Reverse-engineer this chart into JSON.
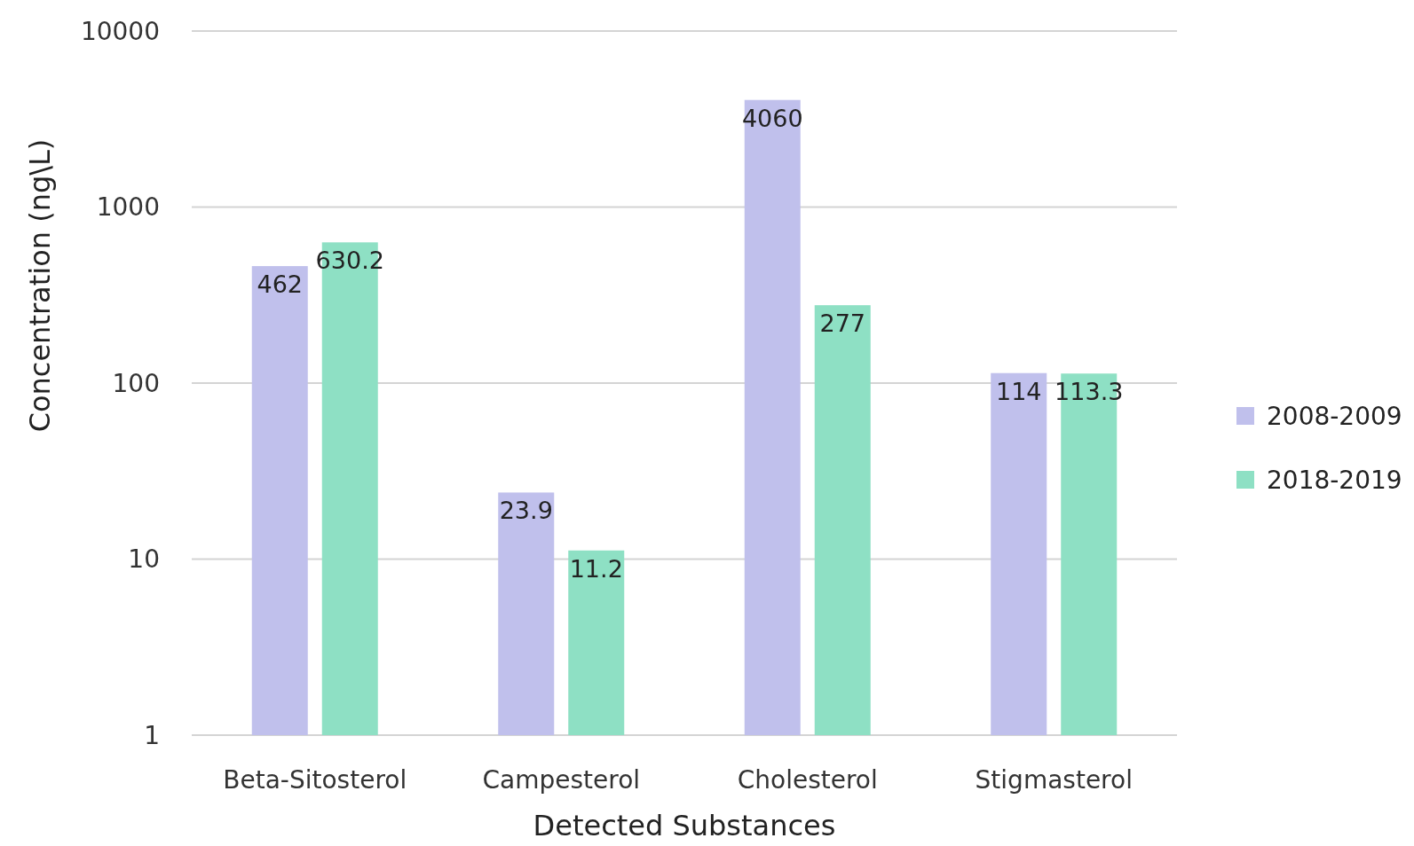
{
  "chart_data": {
    "type": "bar",
    "xlabel": "Detected Substances",
    "ylabel": "Concentration (ng\\L)",
    "categories": [
      "Beta-Sitosterol",
      "Campesterol",
      "Cholesterol",
      "Stigmasterol"
    ],
    "series": [
      {
        "name": "2008-2009",
        "color": "#c0c0ec",
        "values": [
          462,
          23.9,
          4060,
          114
        ]
      },
      {
        "name": "2018-2019",
        "color": "#8ee0c4",
        "values": [
          630.2,
          11.2,
          277,
          113.3
        ]
      }
    ],
    "log": true,
    "ylim": [
      1,
      10000
    ],
    "yticks": [
      1,
      10,
      100,
      1000,
      10000
    ],
    "grid": "y",
    "legend": "right",
    "data_labels": true
  }
}
